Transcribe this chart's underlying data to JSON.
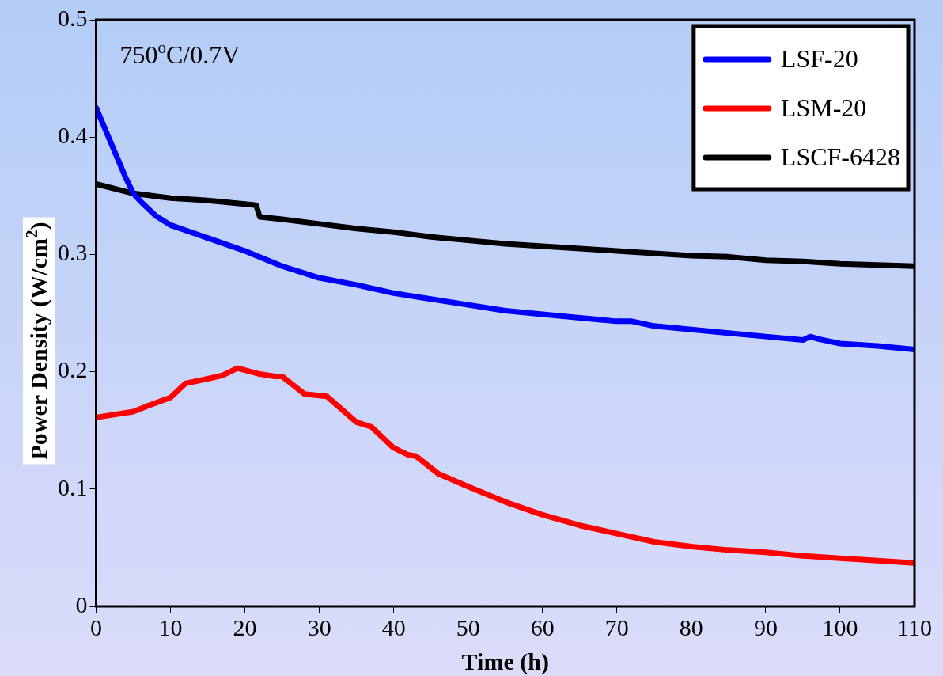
{
  "chart_data": {
    "type": "line",
    "xlabel": "Time (h)",
    "ylabel": "Power Density (W/cm$^{2}$)",
    "annotations": [
      "750$^{o}$C/0.7V"
    ],
    "xlim": [
      0,
      110
    ],
    "xticks": [
      0,
      10,
      20,
      30,
      40,
      50,
      60,
      70,
      80,
      90,
      100,
      110
    ],
    "ylim": [
      0,
      0.5
    ],
    "yticks": [
      0,
      0.1,
      0.2,
      0.3,
      0.4,
      0.5
    ],
    "grid": false,
    "legend": "top right",
    "marker": "none",
    "line_style": "solid",
    "series": [
      {
        "name": "LSF-20",
        "color": "#0000ff",
        "x": [
          0,
          1,
          2,
          3,
          4,
          5,
          6,
          8,
          10,
          15,
          20,
          25,
          30,
          35,
          40,
          45,
          50,
          55,
          60,
          65,
          70,
          72,
          75,
          80,
          85,
          90,
          95,
          96,
          97,
          100,
          105,
          110
        ],
        "values": [
          0.425,
          0.41,
          0.395,
          0.38,
          0.365,
          0.352,
          0.345,
          0.333,
          0.325,
          0.314,
          0.303,
          0.29,
          0.28,
          0.274,
          0.267,
          0.262,
          0.257,
          0.252,
          0.249,
          0.246,
          0.243,
          0.243,
          0.239,
          0.236,
          0.233,
          0.23,
          0.227,
          0.23,
          0.228,
          0.224,
          0.222,
          0.219
        ]
      },
      {
        "name": "LSM-20",
        "color": "#ff0000",
        "x": [
          0,
          5,
          7,
          10,
          12,
          15,
          17,
          19,
          22,
          24,
          25,
          28,
          31,
          35,
          37,
          40,
          42,
          43,
          46,
          50,
          55,
          60,
          65,
          70,
          75,
          80,
          85,
          90,
          95,
          100,
          105,
          110
        ],
        "values": [
          0.161,
          0.166,
          0.171,
          0.178,
          0.19,
          0.194,
          0.197,
          0.203,
          0.198,
          0.196,
          0.196,
          0.181,
          0.179,
          0.157,
          0.153,
          0.135,
          0.129,
          0.128,
          0.113,
          0.102,
          0.089,
          0.078,
          0.069,
          0.062,
          0.055,
          0.051,
          0.048,
          0.046,
          0.043,
          0.041,
          0.039,
          0.037
        ]
      },
      {
        "name": "LSCF-6428",
        "color": "#000000",
        "x": [
          0,
          5,
          10,
          15,
          20,
          21.5,
          22,
          25,
          30,
          35,
          40,
          45,
          50,
          55,
          60,
          65,
          70,
          75,
          80,
          85,
          90,
          95,
          100,
          105,
          110
        ],
        "values": [
          0.36,
          0.352,
          0.348,
          0.346,
          0.343,
          0.342,
          0.332,
          0.33,
          0.326,
          0.322,
          0.319,
          0.315,
          0.312,
          0.309,
          0.307,
          0.305,
          0.303,
          0.301,
          0.299,
          0.298,
          0.295,
          0.294,
          0.292,
          0.291,
          0.29
        ]
      }
    ]
  }
}
